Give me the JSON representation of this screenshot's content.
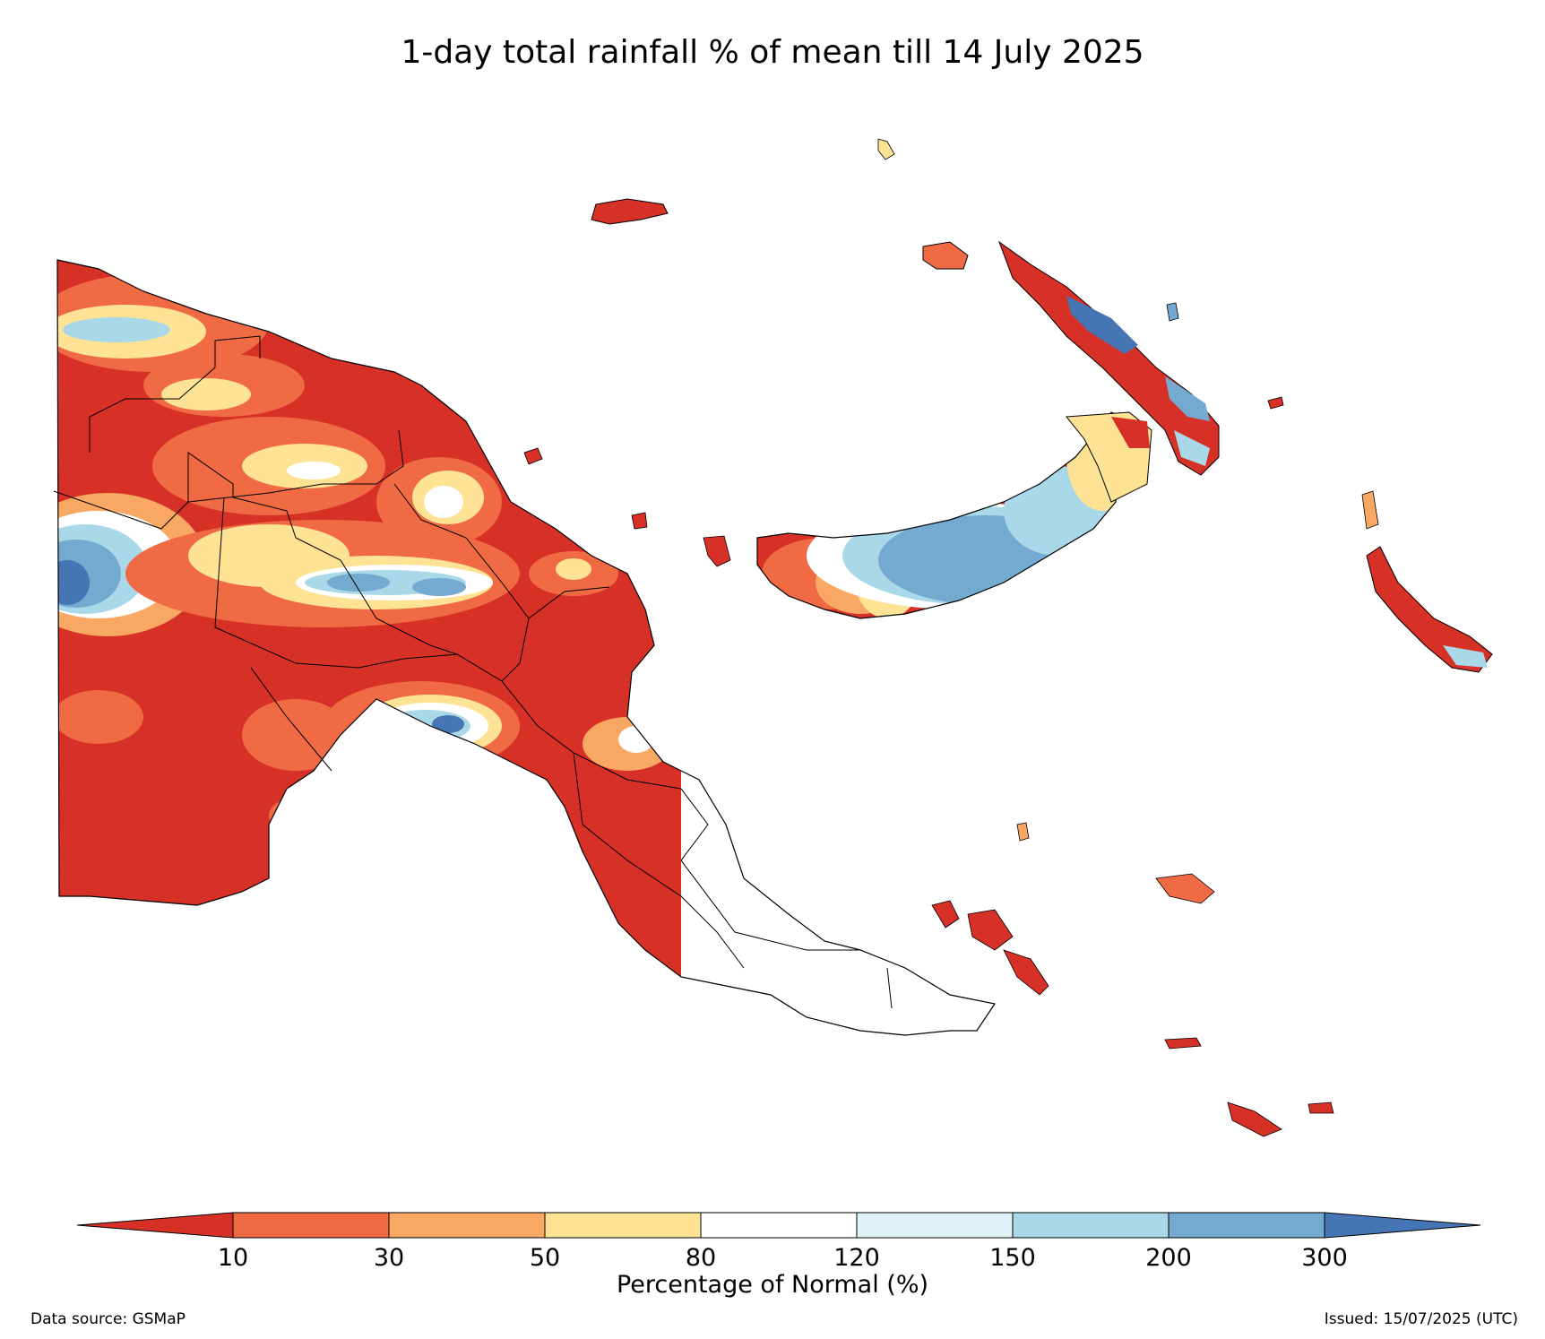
{
  "title": "1-day total rainfall % of mean till 14 July 2025",
  "colorbar": {
    "label": "Percentage of Normal (%)",
    "ticks": [
      "10",
      "30",
      "50",
      "80",
      "120",
      "150",
      "200",
      "300"
    ],
    "colors": {
      "lt10": "#d73027",
      "b10_30": "#f06a43",
      "b30_50": "#f8a862",
      "b50_80": "#fde393",
      "b80_120": "#ffffff",
      "b120_150": "#dff2f8",
      "b150_200": "#a9d8e8",
      "b200_300": "#74a9d0",
      "gt300": "#4575b4"
    }
  },
  "footer": {
    "data_source": "Data source: GSMaP",
    "issued": "Issued: 15/07/2025 (UTC)"
  }
}
